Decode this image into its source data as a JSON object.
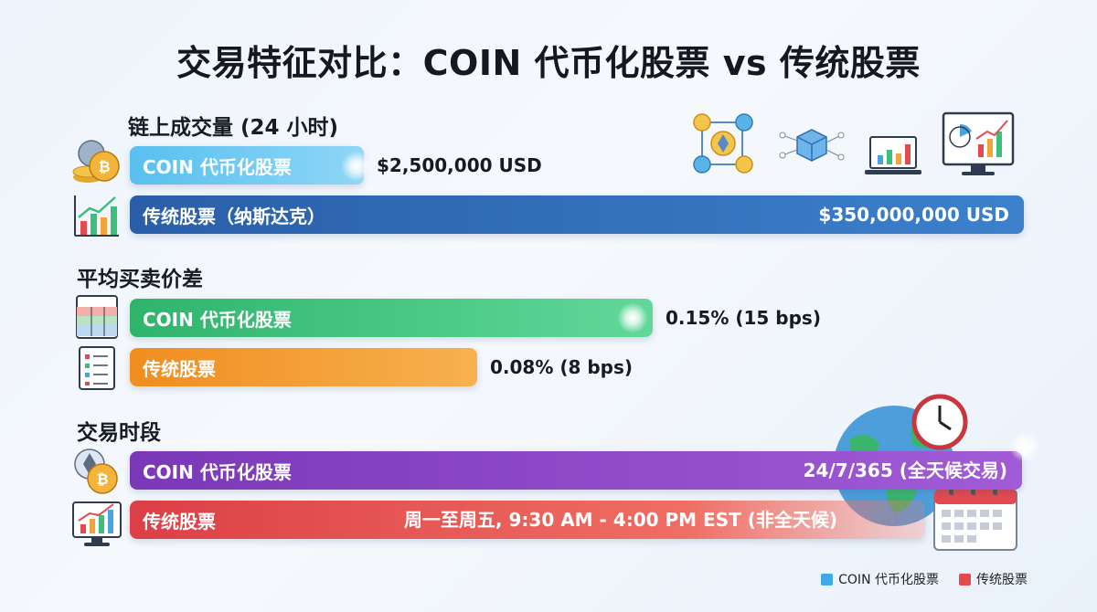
{
  "title": "交易特征对比：COIN 代币化股票 vs 传统股票",
  "chart_data": {
    "type": "bar",
    "sections": [
      {
        "label": "链上成交量 (24 小时)",
        "rows": [
          {
            "name": "COIN 代币化股票",
            "value": 2500000,
            "value_label": "$2,500,000 USD"
          },
          {
            "name": "传统股票（纳斯达克）",
            "value": 350000000,
            "value_label": "$350,000,000 USD"
          }
        ]
      },
      {
        "label": "平均买卖价差",
        "rows": [
          {
            "name": "COIN 代币化股票",
            "value": 0.15,
            "value_label": "0.15% (15 bps)"
          },
          {
            "name": "传统股票",
            "value": 0.08,
            "value_label": "0.08% (8 bps)"
          }
        ]
      },
      {
        "label": "交易时段",
        "rows": [
          {
            "name": "COIN 代币化股票",
            "value_label": "24/7/365 (全天候交易)"
          },
          {
            "name": "传统股票",
            "value_label": "周一至周五, 9:30 AM - 4:00 PM EST (非全天候)"
          }
        ]
      }
    ],
    "legend": {
      "placement": "bottom-right",
      "items": [
        {
          "name": "COIN 代币化股票",
          "color": "#3fa9e8"
        },
        {
          "name": "传统股票",
          "color": "#e5484d"
        }
      ]
    }
  },
  "colors": {
    "volume_coin": "#5ec3f0",
    "volume_trad": "#2c68b3",
    "spread_coin": "#3cc27a",
    "spread_trad": "#f2992e",
    "hours_coin": "#8a45c4",
    "hours_trad": "#e24a4f"
  },
  "icons": {
    "coin_stack": "coin-stack-icon",
    "growth_chart": "growth-chart-icon",
    "spreadsheet": "spreadsheet-icon",
    "document_list": "document-list-icon",
    "crypto_coins": "crypto-coins-icon",
    "monitor_chart": "monitor-chart-icon",
    "globe_clock": "globe-clock-icon",
    "calendar": "calendar-icon",
    "blockchain_network": "blockchain-network-icon",
    "cube_network": "cube-network-icon",
    "laptop_chart": "laptop-chart-icon",
    "dashboard": "dashboard-icon"
  }
}
